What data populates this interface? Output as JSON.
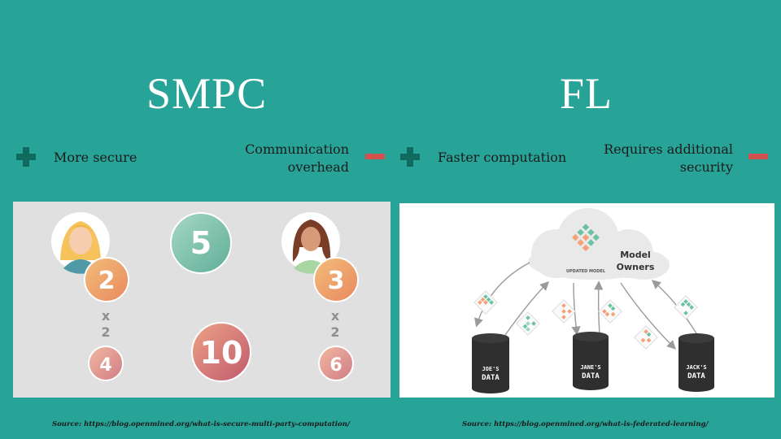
{
  "left": {
    "title": "SMPC",
    "pro": "More secure",
    "con_line1": "Communication",
    "con_line2": "overhead",
    "icons": {
      "pro": "plus-icon",
      "con": "minus-icon"
    },
    "diagram": {
      "top_left_value": "2",
      "top_right_value": "3",
      "center_top_value": "5",
      "mult_sign": "x",
      "mult_value": "2",
      "bottom_left_value": "4",
      "bottom_right_value": "6",
      "bottom_center_value": "10"
    },
    "source": "Source: https://blog.openmined.org/what-is-secure-multi-party-computation/"
  },
  "right": {
    "title": "FL",
    "pro": "Faster computation",
    "con_line1": "Requires additional",
    "con_line2": "security",
    "icons": {
      "pro": "plus-icon",
      "con": "minus-icon"
    },
    "diagram": {
      "cloud_caption": "UPDATED MODEL",
      "owners_line1": "Model",
      "owners_line2": "Owners",
      "db1_line1": "JOE'S",
      "db1_line2": "DATA",
      "db2_line1": "JANE'S",
      "db2_line2": "DATA",
      "db3_line1": "JACK'S",
      "db3_line2": "DATA"
    },
    "source": "Source: https://blog.openmined.org/what-is-federated-learning/"
  },
  "colors": {
    "background": "#27a397",
    "plus": "#0f6b5f",
    "minus": "#d2504e",
    "title": "#ffffff"
  }
}
